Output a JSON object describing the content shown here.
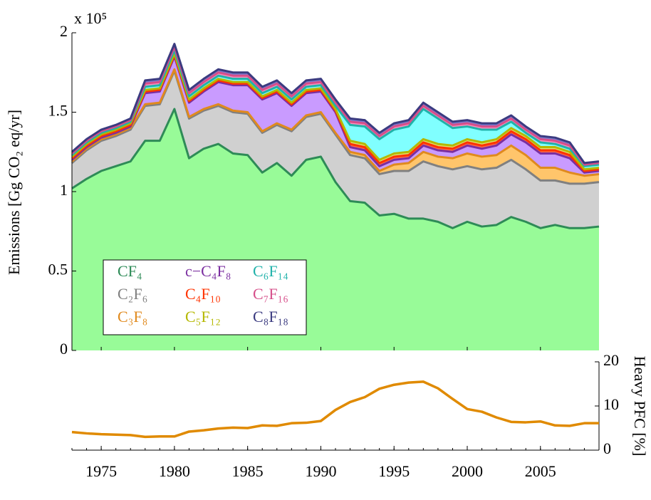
{
  "chart_data": [
    {
      "type": "stacked_area",
      "y_label": "Emissions [Gg CO₂ eq/yr]",
      "y_multiplier": "x 10⁵",
      "x": [
        1973,
        1974,
        1975,
        1976,
        1977,
        1978,
        1979,
        1980,
        1981,
        1982,
        1983,
        1984,
        1985,
        1986,
        1987,
        1988,
        1989,
        1990,
        1991,
        1992,
        1993,
        1994,
        1995,
        1996,
        1997,
        1998,
        1999,
        2000,
        2001,
        2002,
        2003,
        2004,
        2005,
        2006,
        2007,
        2008,
        2009
      ],
      "xlim": [
        1973,
        2009
      ],
      "ylim": [
        0,
        2
      ],
      "yticks": [
        0,
        0.5,
        1,
        1.5,
        2
      ],
      "legend": "lower-left",
      "series": [
        {
          "name": "CF₄",
          "color": "#2e8b57",
          "fill": "#98fb98",
          "values": [
            1.02,
            1.08,
            1.13,
            1.16,
            1.19,
            1.32,
            1.32,
            1.52,
            1.21,
            1.27,
            1.3,
            1.24,
            1.23,
            1.12,
            1.18,
            1.1,
            1.2,
            1.22,
            1.06,
            0.94,
            0.93,
            0.85,
            0.86,
            0.83,
            0.83,
            0.81,
            0.77,
            0.81,
            0.78,
            0.79,
            0.84,
            0.81,
            0.77,
            0.79,
            0.77,
            0.77,
            0.78
          ]
        },
        {
          "name": "C₂F₆",
          "color": "#808080",
          "fill": "#d0d0d0",
          "values": [
            0.16,
            0.18,
            0.19,
            0.19,
            0.2,
            0.22,
            0.23,
            0.24,
            0.25,
            0.24,
            0.24,
            0.26,
            0.26,
            0.25,
            0.24,
            0.28,
            0.27,
            0.27,
            0.3,
            0.29,
            0.28,
            0.26,
            0.27,
            0.3,
            0.36,
            0.35,
            0.37,
            0.35,
            0.36,
            0.36,
            0.36,
            0.33,
            0.3,
            0.28,
            0.28,
            0.28,
            0.28
          ]
        },
        {
          "name": "C₃F₈",
          "color": "#e08a1e",
          "fill": "#ffc56b",
          "values": [
            0.01,
            0.01,
            0.01,
            0.01,
            0.01,
            0.01,
            0.01,
            0.01,
            0.01,
            0.01,
            0.01,
            0.01,
            0.01,
            0.01,
            0.01,
            0.01,
            0.01,
            0.01,
            0.01,
            0.02,
            0.02,
            0.02,
            0.04,
            0.05,
            0.06,
            0.06,
            0.07,
            0.08,
            0.08,
            0.08,
            0.09,
            0.09,
            0.08,
            0.08,
            0.07,
            0.05,
            0.05
          ]
        },
        {
          "name": "c−C₄F₈",
          "color": "#7b2fa0",
          "fill": "#c99bff",
          "values": [
            0.01,
            0.01,
            0.01,
            0.01,
            0.01,
            0.07,
            0.07,
            0.08,
            0.09,
            0.11,
            0.14,
            0.16,
            0.17,
            0.2,
            0.19,
            0.15,
            0.14,
            0.13,
            0.13,
            0.03,
            0.03,
            0.03,
            0.03,
            0.03,
            0.04,
            0.04,
            0.04,
            0.05,
            0.05,
            0.06,
            0.07,
            0.08,
            0.09,
            0.09,
            0.09,
            0.02,
            0.02
          ]
        },
        {
          "name": "C₄F₁₀",
          "color": "#ff3300",
          "fill": "#ff6a4d",
          "values": [
            0.01,
            0.01,
            0.01,
            0.01,
            0.01,
            0.01,
            0.01,
            0.01,
            0.01,
            0.01,
            0.01,
            0.01,
            0.01,
            0.01,
            0.01,
            0.01,
            0.01,
            0.01,
            0.01,
            0.02,
            0.02,
            0.02,
            0.02,
            0.02,
            0.02,
            0.02,
            0.02,
            0.02,
            0.02,
            0.02,
            0.02,
            0.02,
            0.02,
            0.02,
            0.02,
            0.01,
            0.01
          ]
        },
        {
          "name": "C₅F₁₂",
          "color": "#b5b800",
          "fill": "#e0e070",
          "values": [
            0.01,
            0.01,
            0.01,
            0.01,
            0.01,
            0.01,
            0.01,
            0.01,
            0.01,
            0.01,
            0.01,
            0.01,
            0.01,
            0.01,
            0.01,
            0.01,
            0.01,
            0.01,
            0.01,
            0.02,
            0.02,
            0.02,
            0.02,
            0.02,
            0.02,
            0.02,
            0.02,
            0.02,
            0.02,
            0.02,
            0.02,
            0.02,
            0.02,
            0.02,
            0.02,
            0.01,
            0.01
          ]
        },
        {
          "name": "C₆F₁₄",
          "color": "#20b2aa",
          "fill": "#80ffff",
          "values": [
            0.01,
            0.01,
            0.01,
            0.01,
            0.01,
            0.02,
            0.02,
            0.02,
            0.02,
            0.02,
            0.02,
            0.02,
            0.02,
            0.02,
            0.02,
            0.02,
            0.02,
            0.02,
            0.02,
            0.1,
            0.11,
            0.13,
            0.15,
            0.16,
            0.19,
            0.16,
            0.11,
            0.08,
            0.08,
            0.06,
            0.04,
            0.02,
            0.03,
            0.02,
            0.02,
            0.02,
            0.02
          ]
        },
        {
          "name": "C₇F₁₆",
          "color": "#d64f8a",
          "fill": "#ff8fc0",
          "values": [
            0.01,
            0.01,
            0.01,
            0.01,
            0.01,
            0.02,
            0.02,
            0.02,
            0.02,
            0.02,
            0.02,
            0.02,
            0.02,
            0.02,
            0.02,
            0.02,
            0.02,
            0.02,
            0.02,
            0.02,
            0.02,
            0.02,
            0.02,
            0.02,
            0.02,
            0.02,
            0.02,
            0.02,
            0.02,
            0.02,
            0.02,
            0.02,
            0.02,
            0.02,
            0.02,
            0.01,
            0.01
          ]
        },
        {
          "name": "C₈F₁₈",
          "color": "#3b3b80",
          "fill": "#7b7bd0",
          "values": [
            0.01,
            0.01,
            0.01,
            0.01,
            0.01,
            0.02,
            0.02,
            0.02,
            0.02,
            0.02,
            0.02,
            0.02,
            0.02,
            0.02,
            0.02,
            0.02,
            0.02,
            0.02,
            0.02,
            0.02,
            0.02,
            0.02,
            0.02,
            0.02,
            0.02,
            0.02,
            0.02,
            0.02,
            0.02,
            0.02,
            0.02,
            0.02,
            0.02,
            0.02,
            0.02,
            0.01,
            0.01
          ]
        }
      ]
    },
    {
      "type": "line",
      "y_label": "Heavy PFC [%]",
      "x": [
        1973,
        1974,
        1975,
        1976,
        1977,
        1978,
        1979,
        1980,
        1981,
        1982,
        1983,
        1984,
        1985,
        1986,
        1987,
        1988,
        1989,
        1990,
        1991,
        1992,
        1993,
        1994,
        1995,
        1996,
        1997,
        1998,
        1999,
        2000,
        2001,
        2002,
        2003,
        2004,
        2005,
        2006,
        2007,
        2008,
        2009
      ],
      "xlim": [
        1973,
        2009
      ],
      "xticks": [
        1975,
        1980,
        1985,
        1990,
        1995,
        2000,
        2005
      ],
      "ylim": [
        0,
        20
      ],
      "yticks": [
        0,
        10,
        20
      ],
      "y_axis_side": "right",
      "color": "#e08a00",
      "values": [
        4.1,
        3.8,
        3.6,
        3.5,
        3.4,
        3.0,
        3.1,
        3.1,
        4.2,
        4.5,
        4.9,
        5.1,
        5.0,
        5.6,
        5.5,
        6.1,
        6.2,
        6.6,
        9.1,
        10.9,
        12.0,
        13.9,
        14.8,
        15.3,
        15.5,
        14.0,
        11.6,
        9.3,
        8.7,
        7.4,
        6.4,
        6.3,
        6.5,
        5.6,
        5.5,
        6.1,
        6.1
      ]
    }
  ]
}
